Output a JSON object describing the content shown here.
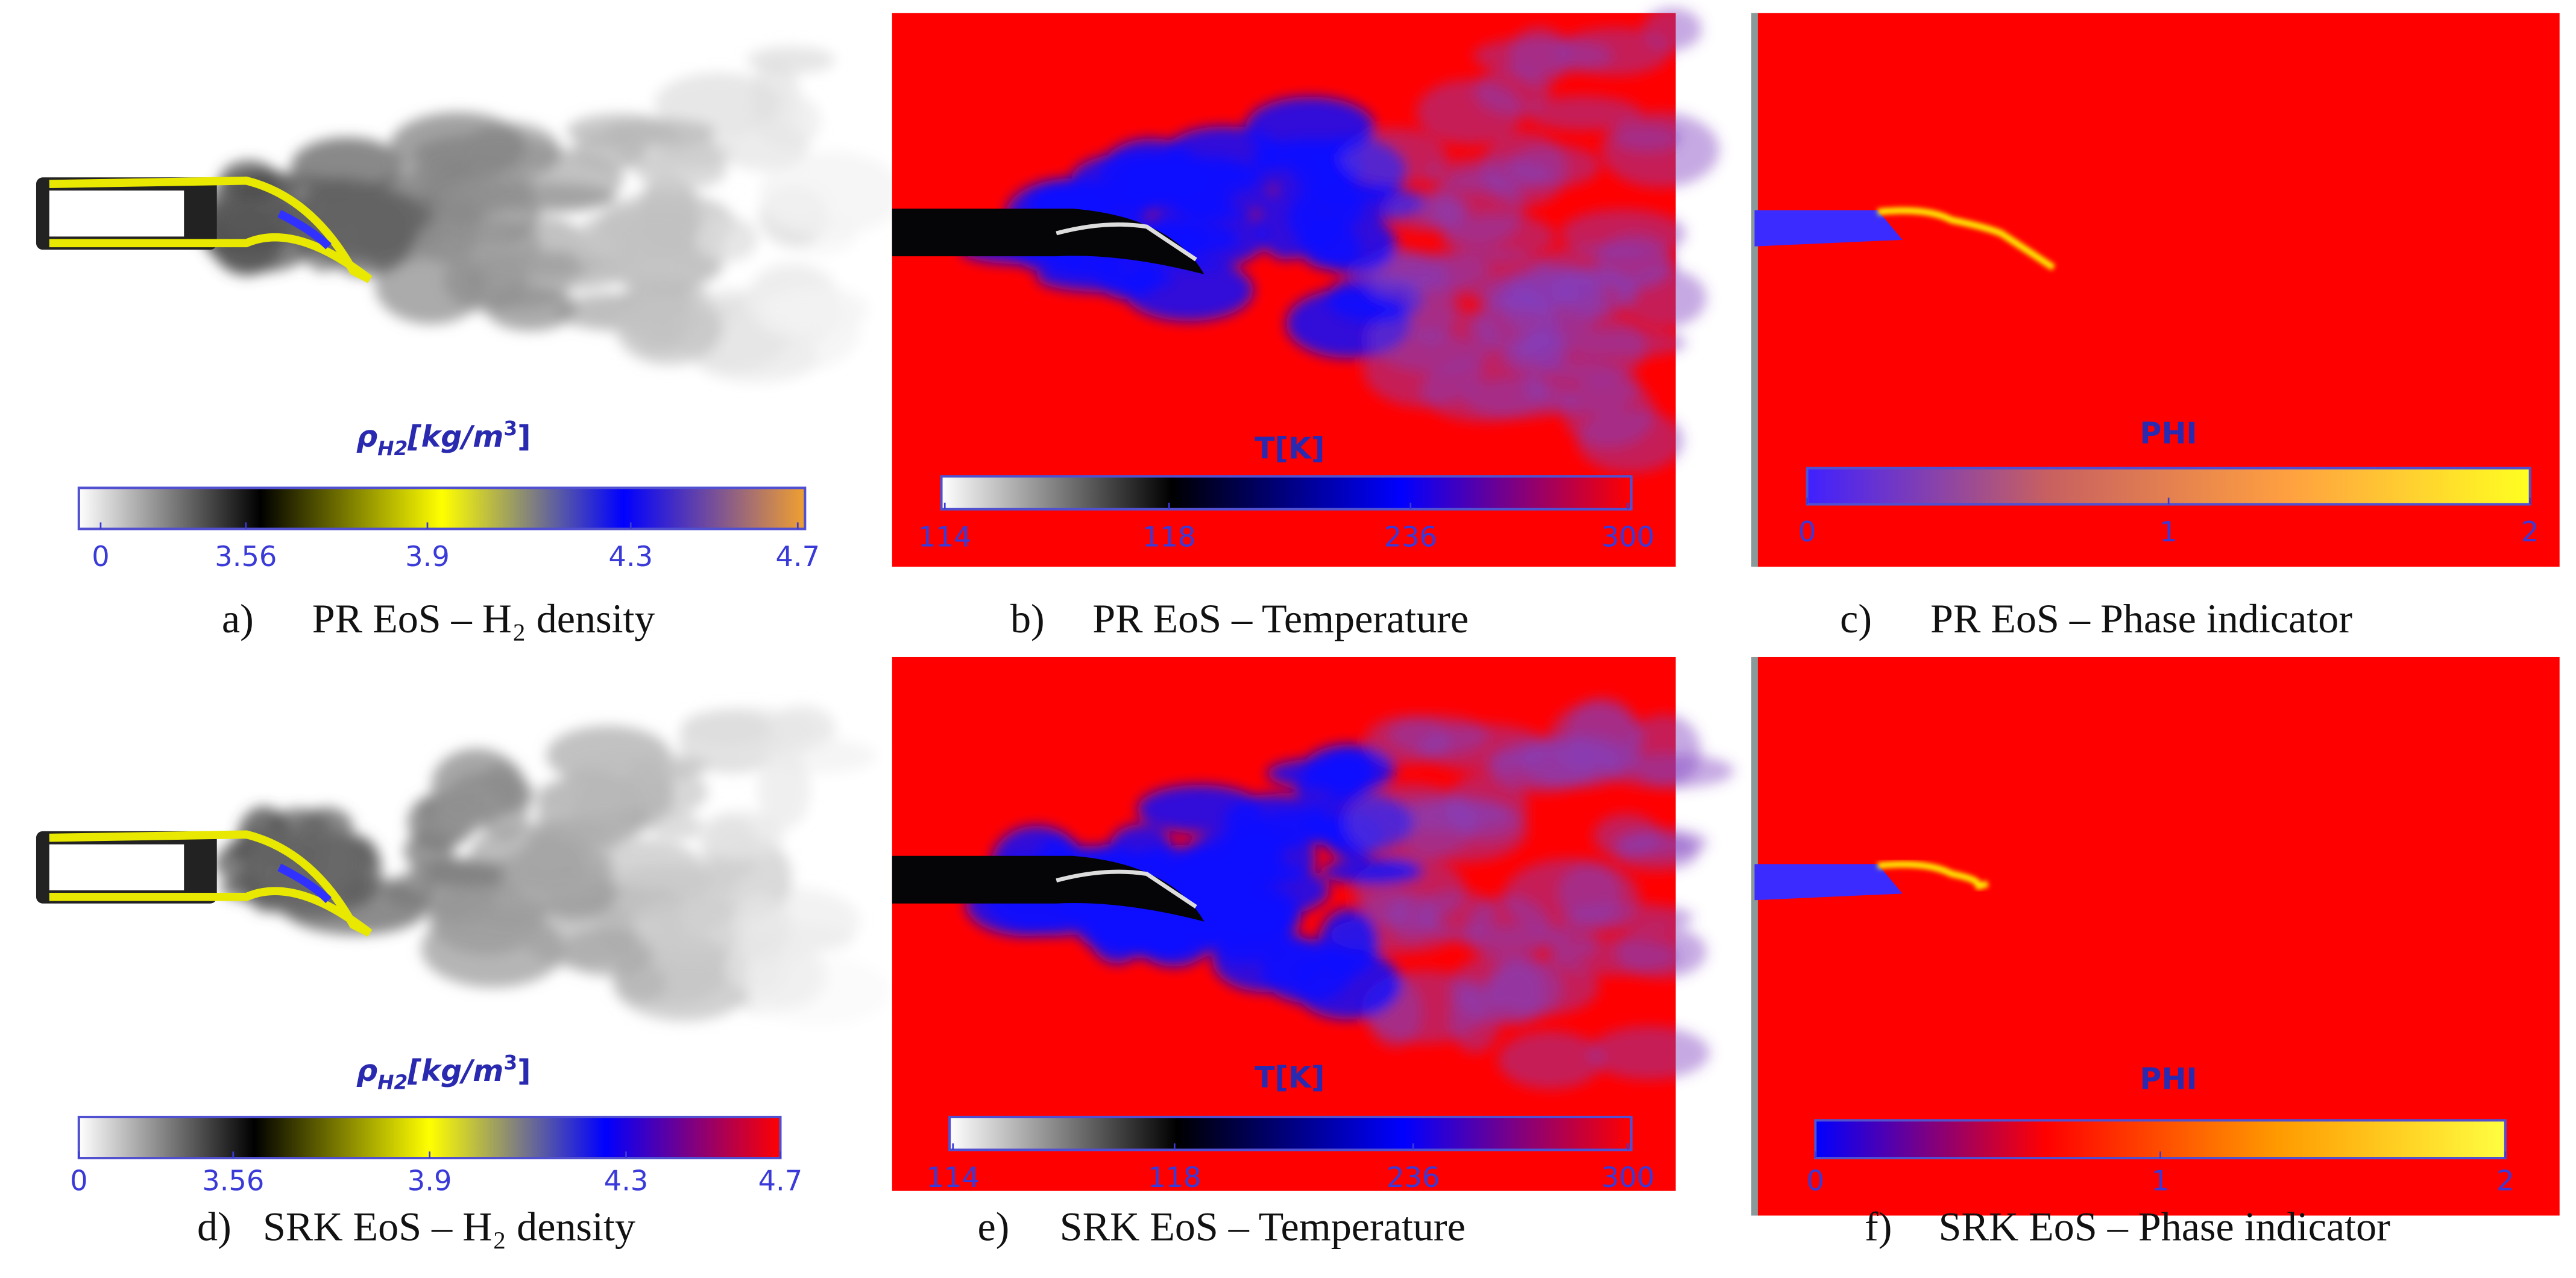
{
  "panels": [
    {
      "label": "a)",
      "caption": "PR EoS – H₂ density",
      "colorbar": {
        "title_parts": [
          "ρ",
          "H2",
          "[kg/m",
          "3",
          "]"
        ],
        "ticks": [
          "0",
          "3.56",
          "3.9",
          "4.3",
          "4.7"
        ]
      }
    },
    {
      "label": "b)",
      "caption": "PR EoS – Temperature",
      "colorbar": {
        "title_parts": [
          "T[K]"
        ],
        "ticks": [
          "114",
          "118",
          "236",
          "300"
        ]
      }
    },
    {
      "label": "c)",
      "caption": "PR EoS – Phase indicator",
      "colorbar": {
        "title_parts": [
          "PHI"
        ],
        "ticks": [
          "0",
          "1",
          "2"
        ]
      }
    },
    {
      "label": "d)",
      "caption": "SRK EoS – H₂ density",
      "colorbar": {
        "title_parts": [
          "ρ",
          "H2",
          "[kg/m",
          "3",
          "]"
        ],
        "ticks": [
          "0",
          "3.56",
          "3.9",
          "4.3",
          "4.7"
        ]
      }
    },
    {
      "label": "e)",
      "caption": "SRK EoS – Temperature",
      "colorbar": {
        "title_parts": [
          "T[K]"
        ],
        "ticks": [
          "114",
          "118",
          "236",
          "300"
        ]
      }
    },
    {
      "label": "f)",
      "caption": "SRK EoS – Phase indicator",
      "colorbar": {
        "title_parts": [
          "PHI"
        ],
        "ticks": [
          "0",
          "1",
          "2"
        ]
      }
    }
  ]
}
